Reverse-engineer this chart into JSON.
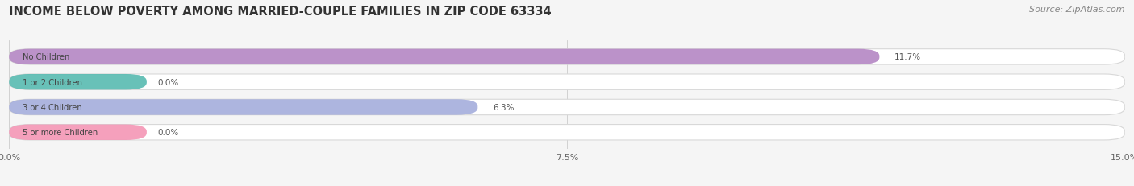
{
  "title": "INCOME BELOW POVERTY AMONG MARRIED-COUPLE FAMILIES IN ZIP CODE 63334",
  "source": "Source: ZipAtlas.com",
  "categories": [
    "No Children",
    "1 or 2 Children",
    "3 or 4 Children",
    "5 or more Children"
  ],
  "values": [
    11.7,
    0.0,
    6.3,
    0.0
  ],
  "bar_colors": [
    "#b07fc0",
    "#4db6ac",
    "#9fa8da",
    "#f48fb1"
  ],
  "xlim": [
    0,
    15.0
  ],
  "xticks": [
    0.0,
    7.5,
    15.0
  ],
  "xtick_labels": [
    "0.0%",
    "7.5%",
    "15.0%"
  ],
  "title_fontsize": 10.5,
  "source_fontsize": 8,
  "bar_height": 0.62,
  "background_color": "#f5f5f5",
  "bar_bg_color": "#ffffff",
  "bar_border_color": "#d8d8d8",
  "label_text_color": "#444444",
  "value_text_color": "#555555"
}
